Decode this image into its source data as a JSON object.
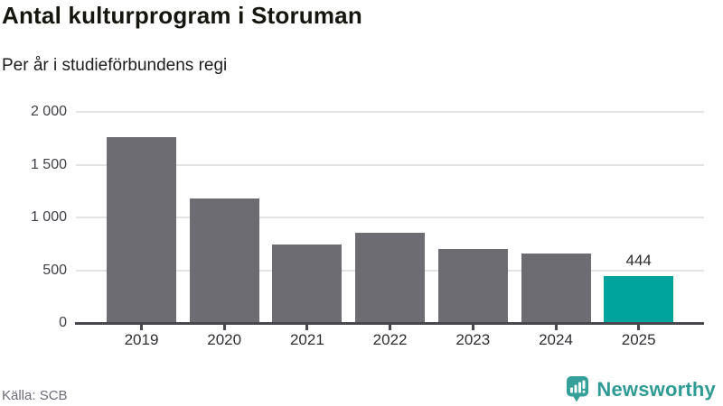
{
  "chart_data": {
    "type": "bar",
    "title": "Antal kulturprogram i Storuman",
    "subtitle": "Per år i studieförbundens regi",
    "categories": [
      "2019",
      "2020",
      "2021",
      "2022",
      "2023",
      "2024",
      "2025"
    ],
    "values": [
      1760,
      1180,
      745,
      855,
      700,
      660,
      444
    ],
    "highlight_index": 6,
    "value_labels": [
      null,
      null,
      null,
      null,
      null,
      null,
      "444"
    ],
    "ylim": [
      0,
      2000
    ],
    "yticks": [
      0,
      500,
      1000,
      1500,
      2000
    ],
    "ytick_labels": [
      "0",
      "500",
      "1 000",
      "1 500",
      "2 000"
    ],
    "grid": true,
    "legend": null,
    "bar_color": "#6d6c72",
    "highlight_color": "#00a49c"
  },
  "footer": {
    "source": "Källa: SCB",
    "brand": "Newsworthy",
    "brand_color": "#2f9b94"
  }
}
